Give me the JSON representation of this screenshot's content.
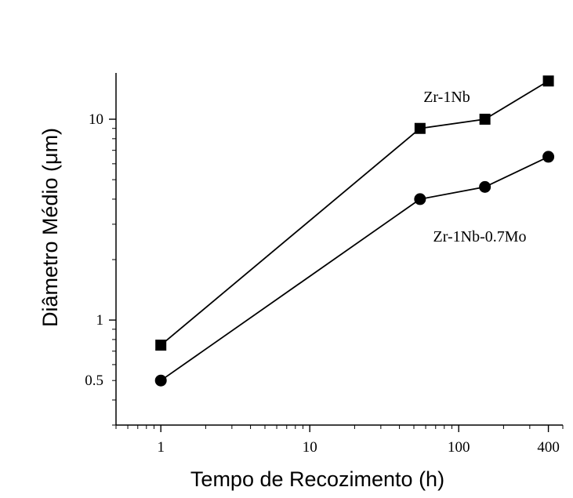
{
  "chart_data": {
    "type": "line",
    "xscale": "log",
    "yscale": "log",
    "xlabel": "Tempo de Recozimento (h)",
    "ylabel": "Diâmetro Médio (μm)",
    "xlim": [
      0.5,
      500
    ],
    "ylim": [
      0.3,
      17
    ],
    "x_ticks": [
      {
        "value": 1,
        "label": "1"
      },
      {
        "value": 10,
        "label": "10"
      },
      {
        "value": 100,
        "label": "100"
      },
      {
        "value": 400,
        "label": "400"
      }
    ],
    "y_ticks": [
      {
        "value": 0.5,
        "label": "0.5"
      },
      {
        "value": 1,
        "label": "1"
      },
      {
        "value": 10,
        "label": "10"
      }
    ],
    "grid": false,
    "series": [
      {
        "name": "Zr-1Nb",
        "marker": "square",
        "color": "#000000",
        "x": [
          1,
          55,
          150,
          400
        ],
        "y": [
          0.75,
          9.0,
          10.0,
          15.5
        ]
      },
      {
        "name": "Zr-1Nb-0.7Mo",
        "marker": "circle",
        "color": "#000000",
        "x": [
          1,
          55,
          150,
          400
        ],
        "y": [
          0.5,
          4.0,
          4.6,
          6.5
        ]
      }
    ]
  }
}
